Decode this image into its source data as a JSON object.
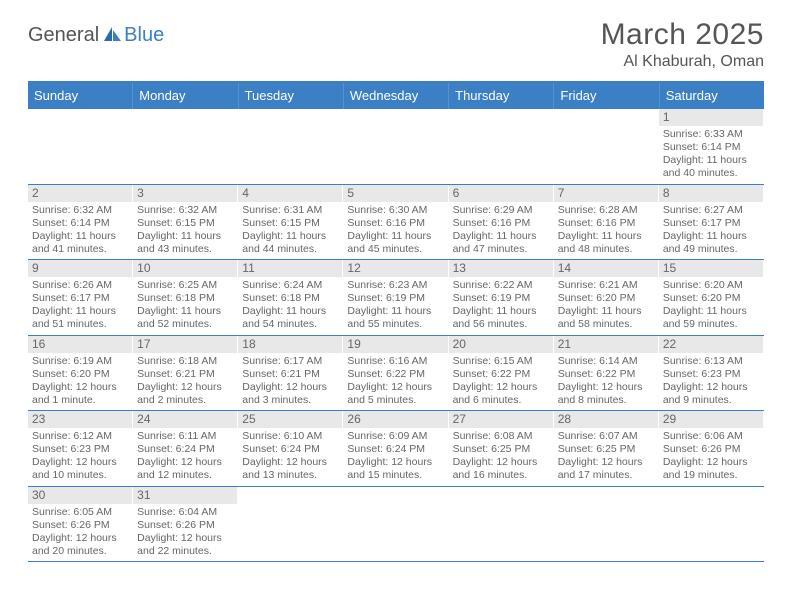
{
  "logo": {
    "text_general": "General",
    "text_blue": "Blue"
  },
  "header": {
    "month_title": "March 2025",
    "location": "Al Khaburah, Oman"
  },
  "colors": {
    "accent": "#3b7fc4",
    "header_text": "#ffffff",
    "body_text": "#555555",
    "cell_text": "#666666",
    "daynum_bg": "#e8e8e8"
  },
  "day_labels": [
    "Sunday",
    "Monday",
    "Tuesday",
    "Wednesday",
    "Thursday",
    "Friday",
    "Saturday"
  ],
  "weeks": [
    [
      null,
      null,
      null,
      null,
      null,
      null,
      {
        "n": "1",
        "sr": "Sunrise: 6:33 AM",
        "ss": "Sunset: 6:14 PM",
        "dl1": "Daylight: 11 hours",
        "dl2": "and 40 minutes."
      }
    ],
    [
      {
        "n": "2",
        "sr": "Sunrise: 6:32 AM",
        "ss": "Sunset: 6:14 PM",
        "dl1": "Daylight: 11 hours",
        "dl2": "and 41 minutes."
      },
      {
        "n": "3",
        "sr": "Sunrise: 6:32 AM",
        "ss": "Sunset: 6:15 PM",
        "dl1": "Daylight: 11 hours",
        "dl2": "and 43 minutes."
      },
      {
        "n": "4",
        "sr": "Sunrise: 6:31 AM",
        "ss": "Sunset: 6:15 PM",
        "dl1": "Daylight: 11 hours",
        "dl2": "and 44 minutes."
      },
      {
        "n": "5",
        "sr": "Sunrise: 6:30 AM",
        "ss": "Sunset: 6:16 PM",
        "dl1": "Daylight: 11 hours",
        "dl2": "and 45 minutes."
      },
      {
        "n": "6",
        "sr": "Sunrise: 6:29 AM",
        "ss": "Sunset: 6:16 PM",
        "dl1": "Daylight: 11 hours",
        "dl2": "and 47 minutes."
      },
      {
        "n": "7",
        "sr": "Sunrise: 6:28 AM",
        "ss": "Sunset: 6:16 PM",
        "dl1": "Daylight: 11 hours",
        "dl2": "and 48 minutes."
      },
      {
        "n": "8",
        "sr": "Sunrise: 6:27 AM",
        "ss": "Sunset: 6:17 PM",
        "dl1": "Daylight: 11 hours",
        "dl2": "and 49 minutes."
      }
    ],
    [
      {
        "n": "9",
        "sr": "Sunrise: 6:26 AM",
        "ss": "Sunset: 6:17 PM",
        "dl1": "Daylight: 11 hours",
        "dl2": "and 51 minutes."
      },
      {
        "n": "10",
        "sr": "Sunrise: 6:25 AM",
        "ss": "Sunset: 6:18 PM",
        "dl1": "Daylight: 11 hours",
        "dl2": "and 52 minutes."
      },
      {
        "n": "11",
        "sr": "Sunrise: 6:24 AM",
        "ss": "Sunset: 6:18 PM",
        "dl1": "Daylight: 11 hours",
        "dl2": "and 54 minutes."
      },
      {
        "n": "12",
        "sr": "Sunrise: 6:23 AM",
        "ss": "Sunset: 6:19 PM",
        "dl1": "Daylight: 11 hours",
        "dl2": "and 55 minutes."
      },
      {
        "n": "13",
        "sr": "Sunrise: 6:22 AM",
        "ss": "Sunset: 6:19 PM",
        "dl1": "Daylight: 11 hours",
        "dl2": "and 56 minutes."
      },
      {
        "n": "14",
        "sr": "Sunrise: 6:21 AM",
        "ss": "Sunset: 6:20 PM",
        "dl1": "Daylight: 11 hours",
        "dl2": "and 58 minutes."
      },
      {
        "n": "15",
        "sr": "Sunrise: 6:20 AM",
        "ss": "Sunset: 6:20 PM",
        "dl1": "Daylight: 11 hours",
        "dl2": "and 59 minutes."
      }
    ],
    [
      {
        "n": "16",
        "sr": "Sunrise: 6:19 AM",
        "ss": "Sunset: 6:20 PM",
        "dl1": "Daylight: 12 hours",
        "dl2": "and 1 minute."
      },
      {
        "n": "17",
        "sr": "Sunrise: 6:18 AM",
        "ss": "Sunset: 6:21 PM",
        "dl1": "Daylight: 12 hours",
        "dl2": "and 2 minutes."
      },
      {
        "n": "18",
        "sr": "Sunrise: 6:17 AM",
        "ss": "Sunset: 6:21 PM",
        "dl1": "Daylight: 12 hours",
        "dl2": "and 3 minutes."
      },
      {
        "n": "19",
        "sr": "Sunrise: 6:16 AM",
        "ss": "Sunset: 6:22 PM",
        "dl1": "Daylight: 12 hours",
        "dl2": "and 5 minutes."
      },
      {
        "n": "20",
        "sr": "Sunrise: 6:15 AM",
        "ss": "Sunset: 6:22 PM",
        "dl1": "Daylight: 12 hours",
        "dl2": "and 6 minutes."
      },
      {
        "n": "21",
        "sr": "Sunrise: 6:14 AM",
        "ss": "Sunset: 6:22 PM",
        "dl1": "Daylight: 12 hours",
        "dl2": "and 8 minutes."
      },
      {
        "n": "22",
        "sr": "Sunrise: 6:13 AM",
        "ss": "Sunset: 6:23 PM",
        "dl1": "Daylight: 12 hours",
        "dl2": "and 9 minutes."
      }
    ],
    [
      {
        "n": "23",
        "sr": "Sunrise: 6:12 AM",
        "ss": "Sunset: 6:23 PM",
        "dl1": "Daylight: 12 hours",
        "dl2": "and 10 minutes."
      },
      {
        "n": "24",
        "sr": "Sunrise: 6:11 AM",
        "ss": "Sunset: 6:24 PM",
        "dl1": "Daylight: 12 hours",
        "dl2": "and 12 minutes."
      },
      {
        "n": "25",
        "sr": "Sunrise: 6:10 AM",
        "ss": "Sunset: 6:24 PM",
        "dl1": "Daylight: 12 hours",
        "dl2": "and 13 minutes."
      },
      {
        "n": "26",
        "sr": "Sunrise: 6:09 AM",
        "ss": "Sunset: 6:24 PM",
        "dl1": "Daylight: 12 hours",
        "dl2": "and 15 minutes."
      },
      {
        "n": "27",
        "sr": "Sunrise: 6:08 AM",
        "ss": "Sunset: 6:25 PM",
        "dl1": "Daylight: 12 hours",
        "dl2": "and 16 minutes."
      },
      {
        "n": "28",
        "sr": "Sunrise: 6:07 AM",
        "ss": "Sunset: 6:25 PM",
        "dl1": "Daylight: 12 hours",
        "dl2": "and 17 minutes."
      },
      {
        "n": "29",
        "sr": "Sunrise: 6:06 AM",
        "ss": "Sunset: 6:26 PM",
        "dl1": "Daylight: 12 hours",
        "dl2": "and 19 minutes."
      }
    ],
    [
      {
        "n": "30",
        "sr": "Sunrise: 6:05 AM",
        "ss": "Sunset: 6:26 PM",
        "dl1": "Daylight: 12 hours",
        "dl2": "and 20 minutes."
      },
      {
        "n": "31",
        "sr": "Sunrise: 6:04 AM",
        "ss": "Sunset: 6:26 PM",
        "dl1": "Daylight: 12 hours",
        "dl2": "and 22 minutes."
      },
      null,
      null,
      null,
      null,
      null
    ]
  ]
}
